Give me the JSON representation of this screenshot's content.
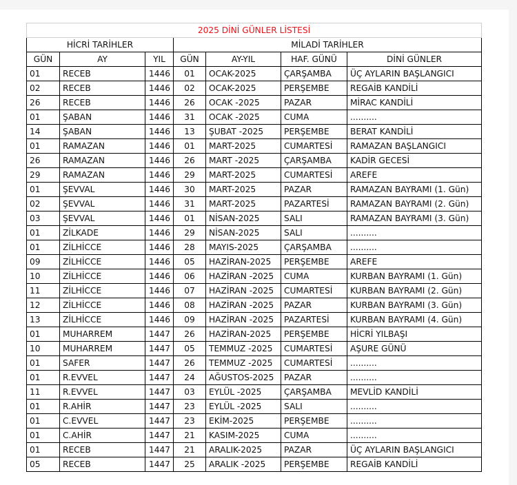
{
  "title": "2025 DİNİ GÜNLER LİSTESİ",
  "groups": {
    "hicri": "HİCRİ TARİHLER",
    "miladi": "MİLADİ TARİHLER"
  },
  "columns": [
    "GÜN",
    "AY",
    "YIL",
    "GÜN",
    "AY-YIL",
    "HAF. GÜNÜ",
    "DİNİ GÜNLER"
  ],
  "colors": {
    "title": "#e8141b"
  },
  "rows": [
    [
      "01",
      "RECEB",
      "1446",
      "01",
      "OCAK-2025",
      "ÇARŞAMBA",
      "ÜÇ AYLARIN BAŞLANGICI"
    ],
    [
      "02",
      "RECEB",
      "1446",
      "02",
      "OCAK-2025",
      "PERŞEMBE",
      "REGAİB KANDİLİ"
    ],
    [
      "26",
      "RECEB",
      "1446",
      "26",
      "OCAK -2025",
      "PAZAR",
      "MİRAC KANDİLİ"
    ],
    [
      "01",
      "ŞABAN",
      "1446",
      "31",
      "OCAK -2025",
      "CUMA",
      ".........."
    ],
    [
      "14",
      "ŞABAN",
      "1446",
      "13",
      "ŞUBAT -2025",
      "PERŞEMBE",
      "BERAT KANDİLİ"
    ],
    [
      "01",
      "RAMAZAN",
      "1446",
      "01",
      "MART-2025",
      "CUMARTESİ",
      "RAMAZAN BAŞLANGICI"
    ],
    [
      "26",
      "RAMAZAN",
      "1446",
      "26",
      "MART -2025",
      "ÇARŞAMBA",
      "KADİR GECESİ"
    ],
    [
      "29",
      "RAMAZAN",
      "1446",
      "29",
      "MART-2025",
      "CUMARTESİ",
      "AREFE"
    ],
    [
      "01",
      "ŞEVVAL",
      "1446",
      "30",
      "MART-2025",
      "PAZAR",
      "RAMAZAN BAYRAMI (1. Gün)"
    ],
    [
      "02",
      "ŞEVVAL",
      "1446",
      "31",
      "MART-2025",
      "PAZARTESİ",
      "RAMAZAN BAYRAMI (2. Gün)"
    ],
    [
      "03",
      "ŞEVVAL",
      "1446",
      "01",
      "NİSAN-2025",
      "SALI",
      "RAMAZAN BAYRAMI (3. Gün)"
    ],
    [
      "01",
      "ZİLKADE",
      "1446",
      "29",
      "NİSAN-2025",
      "SALI",
      ".........."
    ],
    [
      "01",
      "ZİLHİCCE",
      "1446",
      "28",
      "MAYIS-2025",
      "ÇARŞAMBA",
      ".........."
    ],
    [
      "09",
      "ZİLHİCCE",
      "1446",
      "05",
      "HAZİRAN-2025",
      "PERŞEMBE",
      "AREFE"
    ],
    [
      "10",
      "ZİLHİCCE",
      "1446",
      "06",
      "HAZİRAN -2025",
      "CUMA",
      "KURBAN BAYRAMI (1. Gün)"
    ],
    [
      "11",
      "ZİLHİCCE",
      "1446",
      "07",
      "HAZİRAN -2025",
      "CUMARTESİ",
      "KURBAN BAYRAMI (2. Gün)"
    ],
    [
      "12",
      "ZİLHİCCE",
      "1446",
      "08",
      "HAZİRAN -2025",
      "PAZAR",
      "KURBAN BAYRAMI (3. Gün)"
    ],
    [
      "13",
      "ZİLHİCCE",
      "1446",
      "09",
      "HAZİRAN -2025",
      "PAZARTESİ",
      "KURBAN BAYRAMI (4. Gün)"
    ],
    [
      "01",
      "MUHARREM",
      "1447",
      "26",
      "HAZİRAN-2025",
      "PERŞEMBE",
      "HİCRİ YILBAŞI"
    ],
    [
      "10",
      "MUHARREM",
      "1447",
      "05",
      "TEMMUZ -2025",
      "CUMARTESİ",
      "AŞURE GÜNÜ"
    ],
    [
      "01",
      "SAFER",
      "1447",
      "26",
      "TEMMUZ -2025",
      "CUMARTESİ",
      ".........."
    ],
    [
      "01",
      "R.EVVEL",
      "1447",
      "24",
      "AĞUSTOS-2025",
      "PAZAR",
      ".........."
    ],
    [
      "11",
      "R.EVVEL",
      "1447",
      "03",
      "EYLÜL -2025",
      "ÇARŞAMBA",
      "MEVLİD KANDİLİ"
    ],
    [
      "01",
      "R.AHİR",
      "1447",
      "23",
      "EYLÜL -2025",
      "SALI",
      ".........."
    ],
    [
      "01",
      "C.EVVEL",
      "1447",
      "23",
      "EKİM-2025",
      "PERŞEMBE",
      ".........."
    ],
    [
      "01",
      "C.AHİR",
      "1447",
      "21",
      "KASIM-2025",
      "CUMA",
      ".........."
    ],
    [
      "01",
      "RECEB",
      "1447",
      "21",
      "ARALIK-2025",
      "PAZAR",
      "ÜÇ AYLARIN BAŞLANGICI"
    ],
    [
      "05",
      "RECEB",
      "1447",
      "25",
      "ARALIK -2025",
      "PERŞEMBE",
      "REGAİB KANDİLİ"
    ]
  ]
}
